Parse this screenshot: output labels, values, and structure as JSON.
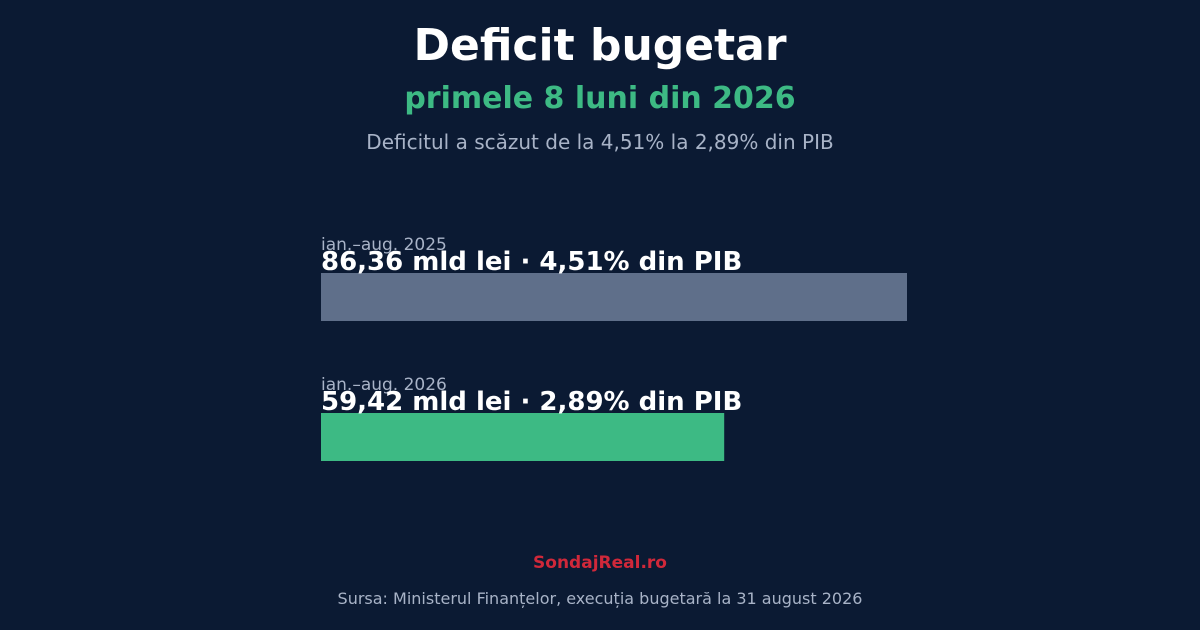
{
  "header": {
    "title": "Deficit bugetar",
    "subtitle": "primele 8 luni din 2026",
    "description": "Deficitul a scăzut de la 4,51% la 2,89% din PIB"
  },
  "chart_data": {
    "type": "bar",
    "orientation": "horizontal",
    "title": "Deficit bugetar",
    "subtitle": "primele 8 luni din 2026",
    "categories": [
      "ian.–aug. 2025",
      "ian.–aug. 2026"
    ],
    "values": [
      86.36,
      59.42
    ],
    "value_unit": "mld lei",
    "data_labels": [
      "86,36 mld lei · 4,51% din PIB",
      "59,42 mld lei · 2,89% din PIB"
    ],
    "pct_gdp": [
      4.51,
      2.89
    ],
    "colors": [
      "#5f6f8a",
      "#3dba84"
    ],
    "xlim": [
      0,
      86.36
    ],
    "grid": false,
    "legend": "none"
  },
  "footer": {
    "brand": "SondajReal.ro",
    "source": "Sursa: Ministerul Finanțelor, execuția bugetară la 31 august 2026"
  },
  "colors": {
    "background": "#0b1a33",
    "accent": "#3dba84",
    "brand": "#d0283a",
    "muted_text": "#a8b3c7"
  }
}
